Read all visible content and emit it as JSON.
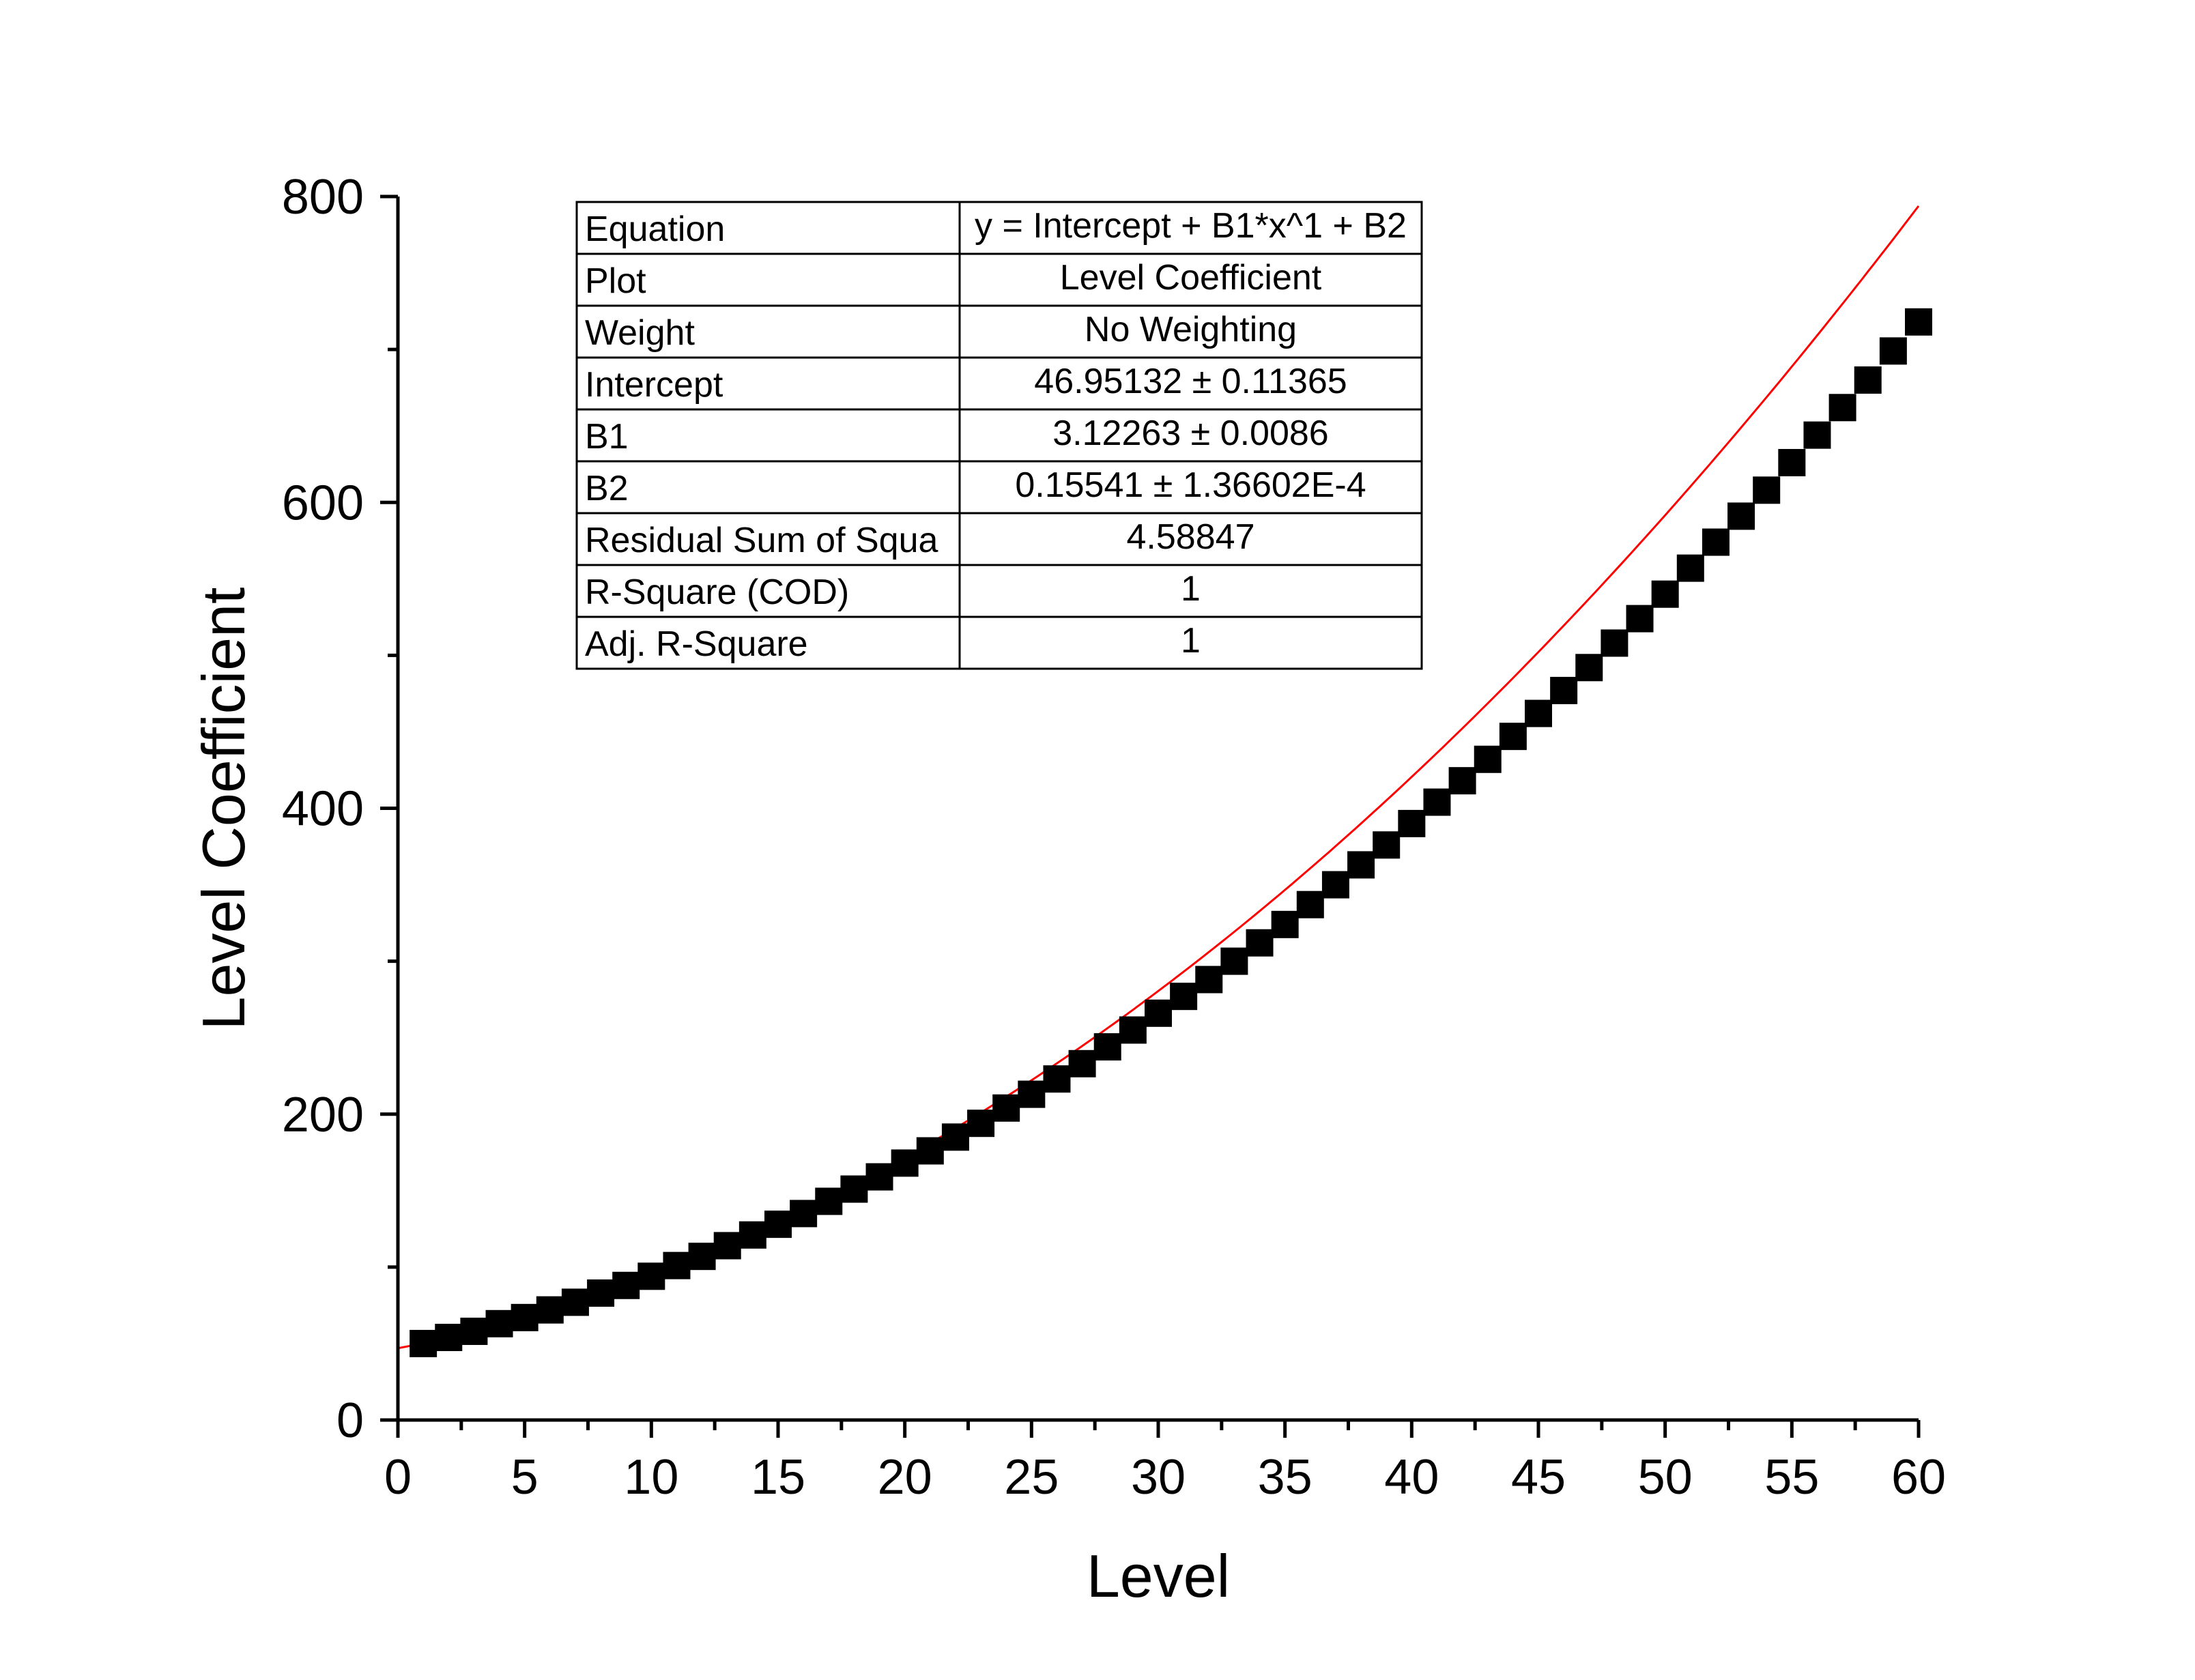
{
  "chart_data": {
    "type": "scatter",
    "xlabel": "Level",
    "ylabel": "Level Coefficient",
    "xlim": [
      0,
      60
    ],
    "ylim": [
      0,
      800
    ],
    "x_ticks": [
      "0",
      "5",
      "10",
      "15",
      "20",
      "25",
      "30",
      "35",
      "40",
      "45",
      "50",
      "55",
      "60"
    ],
    "y_ticks": [
      "0",
      "200",
      "400",
      "600",
      "800"
    ],
    "grid": false,
    "marker": "square",
    "marker_color": "#000000",
    "fit_line_color": "#ff0000",
    "fit": {
      "intercept": 46.95132,
      "b1": 3.12263,
      "b2": 0.15541
    },
    "x": [
      1,
      2,
      3,
      4,
      5,
      6,
      7,
      8,
      9,
      10,
      11,
      12,
      13,
      14,
      15,
      16,
      17,
      18,
      19,
      20,
      21,
      22,
      23,
      24,
      25,
      26,
      27,
      28,
      29,
      30,
      31,
      32,
      33,
      34,
      35,
      36,
      37,
      38,
      39,
      40,
      41,
      42,
      43,
      44,
      45,
      46,
      47,
      48,
      49,
      50,
      51,
      52,
      53,
      54,
      55,
      56,
      57,
      58,
      59,
      60
    ],
    "y": [
      50,
      54,
      58,
      63,
      67,
      72,
      77,
      83,
      88,
      94,
      101,
      107,
      114,
      121,
      128,
      135,
      143,
      151,
      159,
      168,
      176,
      185,
      194,
      204,
      213,
      223,
      233,
      244,
      255,
      266,
      277,
      288,
      300,
      312,
      324,
      337,
      350,
      363,
      376,
      390,
      404,
      418,
      432,
      447,
      462,
      477,
      492,
      508,
      524,
      540,
      557,
      574,
      591,
      608,
      626,
      644,
      662,
      680,
      699,
      718
    ]
  },
  "fit_table": {
    "rows": [
      {
        "label": "Equation",
        "value": "y = Intercept + B1*x^1 + B2"
      },
      {
        "label": "Plot",
        "value": "Level Coefficient"
      },
      {
        "label": "Weight",
        "value": "No Weighting"
      },
      {
        "label": "Intercept",
        "value": "46.95132 ± 0.11365"
      },
      {
        "label": "B1",
        "value": "3.12263 ± 0.0086"
      },
      {
        "label": "B2",
        "value": "0.15541 ± 1.36602E-4"
      },
      {
        "label": "Residual Sum of Squa",
        "value": "4.58847"
      },
      {
        "label": "R-Square (COD)",
        "value": "1"
      },
      {
        "label": "Adj. R-Square",
        "value": "1"
      }
    ]
  }
}
